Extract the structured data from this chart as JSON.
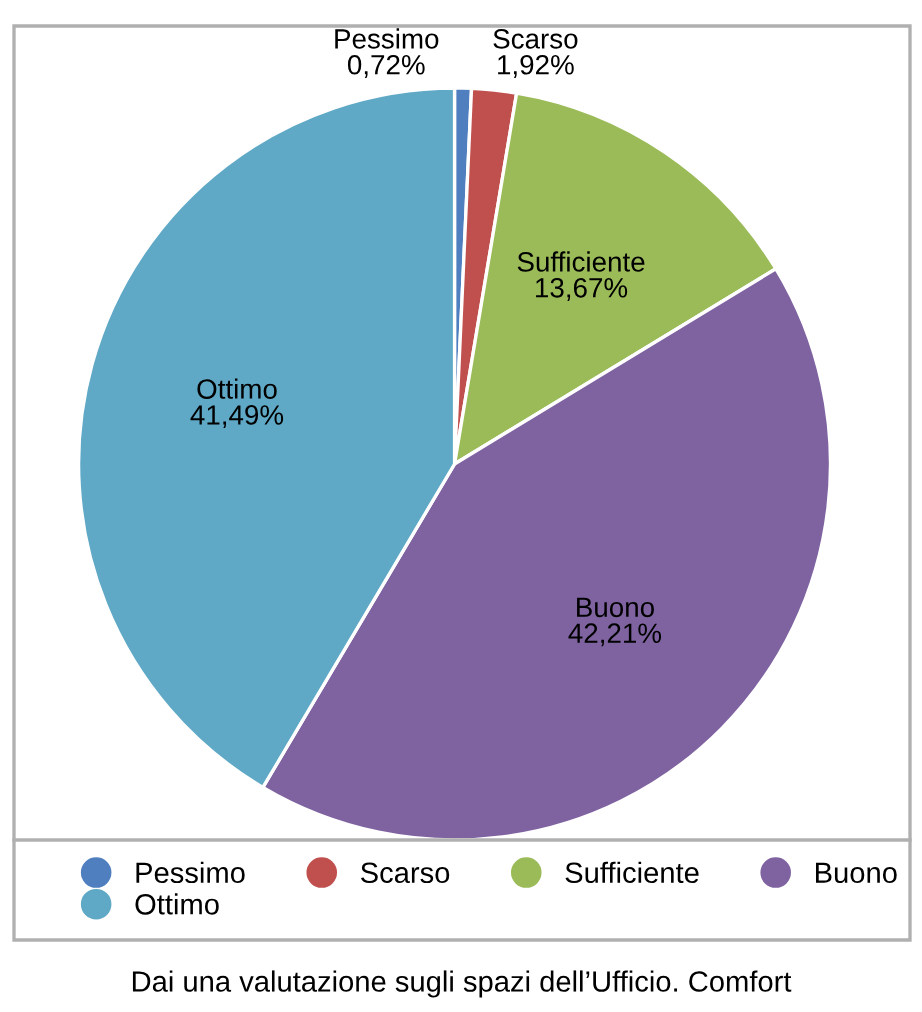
{
  "chart_data": {
    "type": "pie",
    "categories": [
      "Pessimo",
      "Scarso",
      "Sufficiente",
      "Buono",
      "Ottimo"
    ],
    "values": [
      0.72,
      1.92,
      13.67,
      42.21,
      41.49
    ],
    "colors": [
      "#4f7fbf",
      "#c0504d",
      "#9bbb59",
      "#7f63a1",
      "#5fa9c6"
    ],
    "value_labels": [
      "0,72%",
      "1,92%",
      "13,67%",
      "42,21%",
      "41,49%"
    ],
    "legend": "bottom",
    "annotations": [
      "Dai una valutazione sugli spazi dell’Ufficio. Comfort"
    ]
  }
}
